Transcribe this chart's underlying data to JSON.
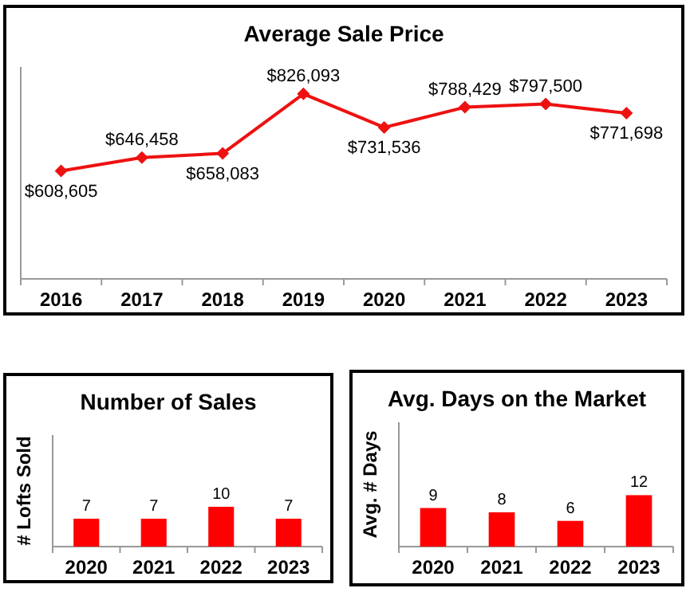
{
  "chart_data": [
    {
      "type": "line",
      "title": "Average Sale Price",
      "categories": [
        "2016",
        "2017",
        "2018",
        "2019",
        "2020",
        "2021",
        "2022",
        "2023"
      ],
      "series": [
        {
          "color": "#ee1111",
          "values": [
            608605,
            646458,
            658083,
            826093,
            731536,
            788429,
            797500,
            771698
          ],
          "value_labels": [
            "$608,605",
            "$646,458",
            "$658,083",
            "$826,093",
            "$731,536",
            "$788,429",
            "$797,500",
            "$771,698"
          ]
        }
      ],
      "tick_labels": "x",
      "marker": "diamond",
      "line_style": "solid"
    },
    {
      "type": "bar",
      "title": "Number of Sales",
      "ylabel": "# Lofts Sold",
      "categories": [
        "2020",
        "2021",
        "2022",
        "2023"
      ],
      "values": [
        7,
        7,
        10,
        7
      ],
      "color": "#ff0000",
      "ylim": [
        0,
        28
      ],
      "tick_labels": "x",
      "data_labels": true
    },
    {
      "type": "bar",
      "title": "Avg. Days on the Market",
      "ylabel": "Avg. # Days",
      "categories": [
        "2020",
        "2021",
        "2022",
        "2023"
      ],
      "values": [
        9,
        8,
        6,
        12
      ],
      "color": "#ff0000",
      "ylim": [
        0,
        29
      ],
      "tick_labels": "x",
      "data_labels": true
    }
  ]
}
